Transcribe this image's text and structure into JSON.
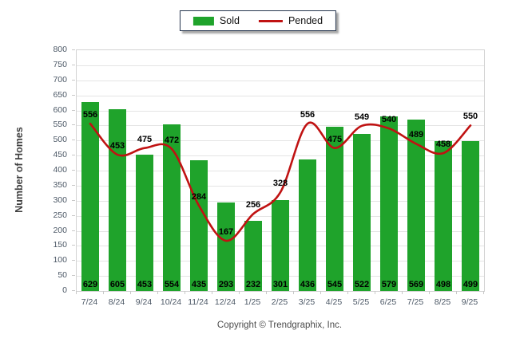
{
  "legend": {
    "items": [
      {
        "label": "Sold",
        "swatch": "bar-swatch",
        "color": "#1FA32B"
      },
      {
        "label": "Pended",
        "swatch": "line-swatch",
        "color": "#C01212"
      }
    ]
  },
  "footer": {
    "text": "Copyright © Trendgraphix, Inc."
  },
  "chart_data": {
    "type": "bar+line",
    "title": "",
    "categories": [
      "7/24",
      "8/24",
      "9/24",
      "10/24",
      "11/24",
      "12/24",
      "1/25",
      "2/25",
      "3/25",
      "4/25",
      "5/25",
      "6/25",
      "7/25",
      "8/25",
      "9/25"
    ],
    "series": [
      {
        "name": "Sold",
        "type": "bar",
        "color": "#1FA32B",
        "values": [
          629,
          605,
          453,
          554,
          435,
          293,
          232,
          301,
          436,
          545,
          522,
          579,
          569,
          498,
          499
        ]
      },
      {
        "name": "Pended",
        "type": "line",
        "color": "#C01212",
        "values": [
          556,
          453,
          475,
          472,
          284,
          167,
          256,
          328,
          556,
          475,
          549,
          540,
          489,
          458,
          550
        ]
      }
    ],
    "xlabel": "",
    "ylabel": "Number of Homes",
    "ylim": [
      0,
      800
    ],
    "y_ticks": [
      0,
      50,
      100,
      150,
      200,
      250,
      300,
      350,
      400,
      450,
      500,
      550,
      600,
      650,
      700,
      750,
      800
    ],
    "grid": "horizontal",
    "legend_position": "top-center",
    "colors": {
      "gridline": "#E4E4E4",
      "plot_border": "#D3D3D3",
      "axis_text": "#4C5866",
      "data_label": "#000000"
    }
  }
}
